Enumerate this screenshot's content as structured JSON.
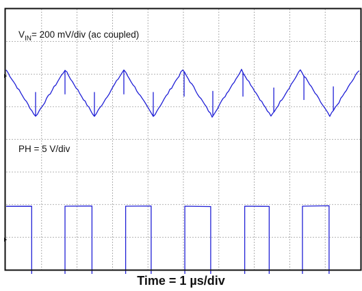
{
  "chart_data": {
    "type": "line",
    "title": "",
    "xlabel": "Time = 1 µs/div",
    "ylabel": "",
    "grid": true,
    "divisions": {
      "x": 10,
      "y": 8
    },
    "x_unit": "µs",
    "x_range": [
      0,
      10
    ],
    "period_us": 1.68,
    "series": [
      {
        "name": "V_IN",
        "label_main": "V",
        "label_sub": "IN",
        "label_rest": "= 200 mV/div (ac coupled)",
        "scale": "200 mV/div",
        "coupling": "ac",
        "waveform": "triangle ripple",
        "x": [
          0,
          0.83,
          1.66,
          2.49,
          3.32,
          4.15,
          4.98,
          5.81,
          6.64,
          7.47,
          8.3,
          9.13,
          9.96
        ],
        "y": [
          0.63,
          -0.8,
          0.63,
          -0.8,
          0.63,
          -0.8,
          0.63,
          -0.8,
          0.63,
          -0.8,
          0.63,
          -0.8,
          0.63
        ],
        "y_unit": "div",
        "spike_times_us": [
          0.83,
          1.66,
          2.49,
          3.32,
          4.15,
          5.02,
          5.83,
          6.68,
          7.55,
          8.4,
          9.23
        ],
        "color": "#1f1fd6"
      },
      {
        "name": "PH",
        "label_main": "PH = 5 V/div",
        "scale": "5 V/div",
        "waveform": "square (switch node)",
        "x": [
          0,
          0.72,
          0.72,
          1.66,
          1.66,
          2.42,
          2.42,
          3.37,
          3.37,
          4.09,
          4.09,
          5.04,
          5.04,
          5.77,
          5.77,
          6.73,
          6.73,
          7.42,
          7.42,
          8.36,
          8.36,
          9.11,
          9.11,
          10
        ],
        "y": [
          1.15,
          1.15,
          -1.15,
          -1.15,
          1.15,
          1.15,
          -1.15,
          -1.15,
          1.15,
          1.15,
          -1.15,
          -1.15,
          1.15,
          1.15,
          -1.15,
          -1.15,
          1.15,
          1.15,
          -1.15,
          -1.15,
          1.15,
          1.15,
          -1.15,
          -1.15
        ],
        "y_unit": "div",
        "color": "#1f1fd6"
      }
    ]
  },
  "colors": {
    "trace": "#1f1fd6",
    "grid": "#9a9a9a",
    "frame": "#111111"
  }
}
